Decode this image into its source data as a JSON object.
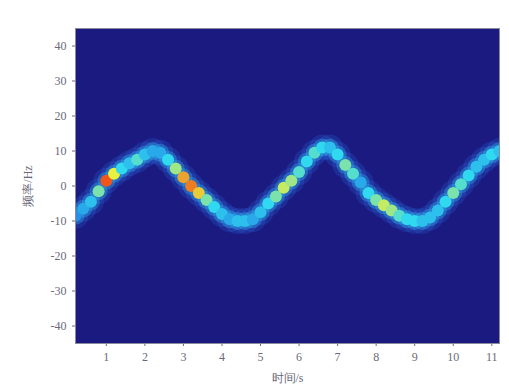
{
  "chart_data": {
    "type": "heatmap",
    "xlabel": "时间/s",
    "ylabel": "频率/Hz",
    "x": [
      0.2,
      0.4,
      0.6,
      0.8,
      1.0,
      1.2,
      1.4,
      1.6,
      1.8,
      2.0,
      2.2,
      2.4,
      2.6,
      2.8,
      3.0,
      3.2,
      3.4,
      3.6,
      3.8,
      4.0,
      4.2,
      4.4,
      4.6,
      4.8,
      5.0,
      5.2,
      5.4,
      5.6,
      5.8,
      6.0,
      6.2,
      6.4,
      6.6,
      6.8,
      7.0,
      7.2,
      7.4,
      7.6,
      7.8,
      8.0,
      8.2,
      8.4,
      8.6,
      8.8,
      9.0,
      9.2,
      9.4,
      9.6,
      9.8,
      10.0,
      10.2,
      10.4,
      10.6,
      10.8,
      11.0,
      11.2
    ],
    "values": [
      -8.5,
      -6.5,
      -4.5,
      -1.5,
      1.5,
      3.5,
      5,
      6.5,
      7.5,
      9,
      10,
      9.5,
      7.5,
      5,
      2.5,
      0,
      -2,
      -4,
      -6,
      -8,
      -9.5,
      -10,
      -10,
      -9.5,
      -7.5,
      -5,
      -3,
      -0.5,
      1.5,
      4,
      7,
      9.5,
      11,
      11,
      9,
      6,
      3.5,
      1,
      -2,
      -4,
      -5.5,
      -7,
      -8.5,
      -9.5,
      -10,
      -10,
      -9,
      -7,
      -4.5,
      -2,
      0.5,
      3,
      5.5,
      7.5,
      9,
      10
    ],
    "intensity": [
      0.35,
      0.4,
      0.45,
      0.6,
      0.95,
      0.75,
      0.5,
      0.45,
      0.55,
      0.45,
      0.4,
      0.4,
      0.5,
      0.65,
      0.85,
      0.9,
      0.8,
      0.6,
      0.5,
      0.45,
      0.4,
      0.45,
      0.45,
      0.4,
      0.45,
      0.5,
      0.6,
      0.7,
      0.65,
      0.55,
      0.5,
      0.55,
      0.5,
      0.45,
      0.5,
      0.6,
      0.55,
      0.4,
      0.5,
      0.6,
      0.7,
      0.65,
      0.55,
      0.5,
      0.5,
      0.45,
      0.45,
      0.45,
      0.5,
      0.6,
      0.55,
      0.5,
      0.45,
      0.45,
      0.5,
      0.45
    ],
    "zlim": [
      0,
      1
    ],
    "xlim": [
      0.2,
      11.2
    ],
    "ylim": [
      -45,
      45
    ],
    "xticks": [
      1,
      2,
      3,
      4,
      5,
      6,
      7,
      8,
      9,
      10,
      11
    ],
    "yticks": [
      -40,
      -30,
      -20,
      -10,
      0,
      10,
      20,
      30,
      40
    ]
  }
}
